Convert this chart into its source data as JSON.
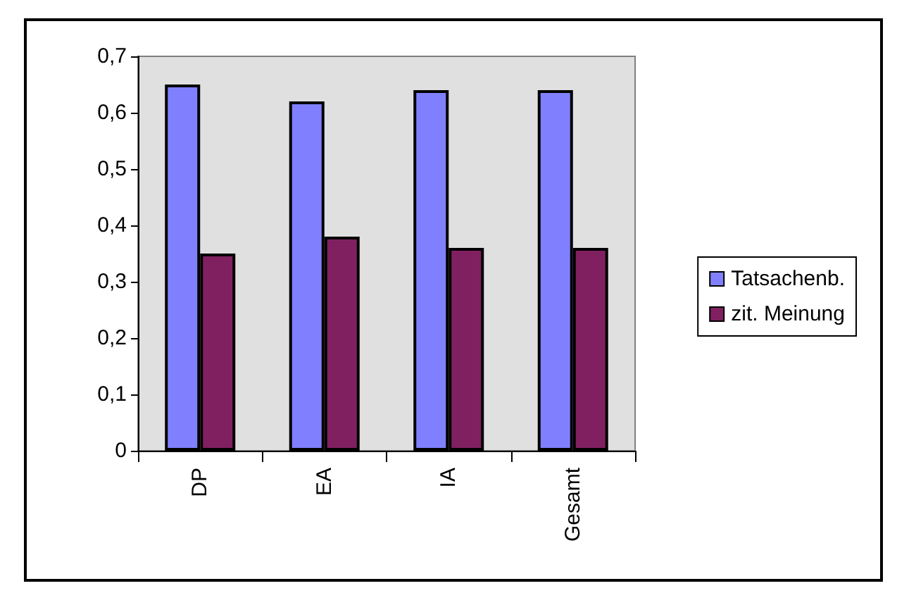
{
  "chart_data": {
    "type": "bar",
    "categories": [
      "DP",
      "EA",
      "IA",
      "Gesamt"
    ],
    "series": [
      {
        "name": "Tatsachenb.",
        "color": "#8080ff",
        "values": [
          0.65,
          0.62,
          0.64,
          0.64
        ]
      },
      {
        "name": "zit. Meinung",
        "color": "#802060",
        "values": [
          0.35,
          0.38,
          0.36,
          0.36
        ]
      }
    ],
    "ylim": [
      0,
      0.7
    ],
    "yticks": [
      0,
      {
        "value": 0.1,
        "label": "0,1"
      },
      {
        "value": 0.2,
        "label": "0,2"
      },
      {
        "value": 0.3,
        "label": "0,3"
      },
      {
        "value": 0.4,
        "label": "0,4"
      },
      {
        "value": 0.5,
        "label": "0,5"
      },
      {
        "value": 0.6,
        "label": "0,6"
      },
      {
        "value": 0.7,
        "label": "0,7"
      }
    ],
    "grid": false,
    "legend": "right"
  }
}
